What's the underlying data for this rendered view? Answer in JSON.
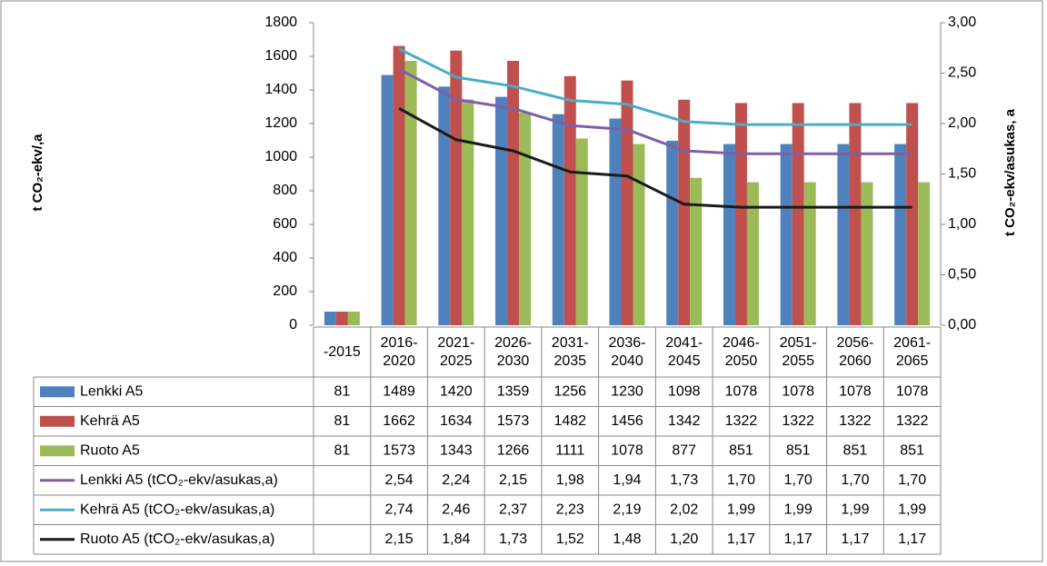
{
  "chart_data": {
    "type": "bar-line-table",
    "y_label": "t CO₂-ekv/,a",
    "y2_label": "t CO₂-ekv/asukas, a",
    "categories": [
      "-2015",
      "2016-2020",
      "2021-2025",
      "2026-2030",
      "2031-2035",
      "2036-2040",
      "2041-2045",
      "2046-2050",
      "2051-2055",
      "2056-2060",
      "2061-2065"
    ],
    "ylim": [
      0,
      1800
    ],
    "yticks": [
      0,
      200,
      400,
      600,
      800,
      1000,
      1200,
      1400,
      1600,
      1800
    ],
    "y2lim": [
      0,
      3
    ],
    "y2ticks": [
      {
        "value": 0,
        "label": "0,00"
      },
      {
        "value": 0.5,
        "label": "0,50"
      },
      {
        "value": 1,
        "label": "1,00"
      },
      {
        "value": 1.5,
        "label": "1,50"
      },
      {
        "value": 2,
        "label": "2,00"
      },
      {
        "value": 2.5,
        "label": "2,50"
      },
      {
        "value": 3,
        "label": "3,00"
      }
    ],
    "grid": false,
    "series": [
      {
        "name": "Lenkki A5",
        "kind": "bar",
        "color": "#4f81bd",
        "values": [
          81,
          1489,
          1420,
          1359,
          1256,
          1230,
          1098,
          1078,
          1078,
          1078,
          1078
        ]
      },
      {
        "name": "Kehrä A5",
        "kind": "bar",
        "color": "#c0504d",
        "values": [
          81,
          1662,
          1634,
          1573,
          1482,
          1456,
          1342,
          1322,
          1322,
          1322,
          1322
        ]
      },
      {
        "name": "Ruoto A5",
        "kind": "bar",
        "color": "#9bbb59",
        "values": [
          81,
          1573,
          1343,
          1266,
          1111,
          1078,
          877,
          851,
          851,
          851,
          851
        ]
      },
      {
        "name": "Lenkki A5 (tCO₂-ekv/asukas,a)",
        "kind": "line",
        "axis": "y2",
        "color": "#7f5fa8",
        "values": [
          null,
          2.54,
          2.24,
          2.15,
          1.98,
          1.94,
          1.73,
          1.7,
          1.7,
          1.7,
          1.7
        ],
        "value_labels": [
          null,
          "2,54",
          "2,24",
          "2,15",
          "1,98",
          "1,94",
          "1,73",
          "1,70",
          "1,70",
          "1,70",
          "1,70"
        ]
      },
      {
        "name": "Kehrä A5 (tCO₂-ekv/asukas,a)",
        "kind": "line",
        "axis": "y2",
        "color": "#4bacc6",
        "values": [
          null,
          2.74,
          2.46,
          2.37,
          2.23,
          2.19,
          2.02,
          1.99,
          1.99,
          1.99,
          1.99
        ],
        "value_labels": [
          null,
          "2,74",
          "2,46",
          "2,37",
          "2,23",
          "2,19",
          "2,02",
          "1,99",
          "1,99",
          "1,99",
          "1,99"
        ]
      },
      {
        "name": "Ruoto A5 (tCO₂-ekv/asukas,a)",
        "kind": "line",
        "axis": "y2",
        "color": "#1a1a1a",
        "values": [
          null,
          2.15,
          1.84,
          1.73,
          1.52,
          1.48,
          1.2,
          1.17,
          1.17,
          1.17,
          1.17
        ],
        "value_labels": [
          null,
          "2,15",
          "1,84",
          "1,73",
          "1,52",
          "1,48",
          "1,20",
          "1,17",
          "1,17",
          "1,17",
          "1,17"
        ]
      }
    ]
  }
}
